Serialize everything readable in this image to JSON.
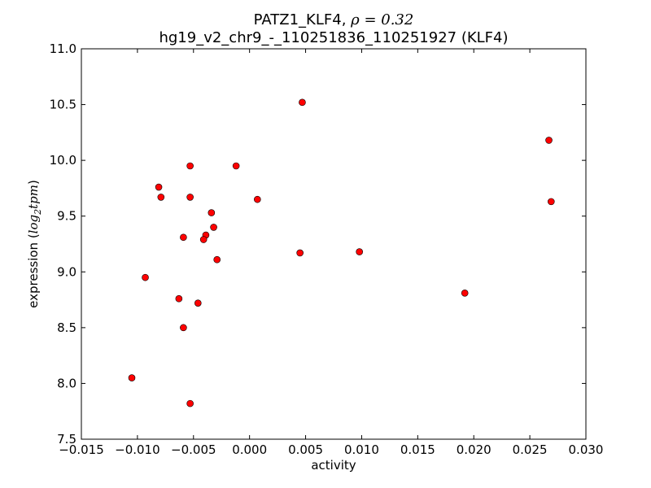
{
  "chart_data": {
    "type": "scatter",
    "title_line1_text": "PATZ1_KLF4, ",
    "title_line1_rho": "ρ = 0.32",
    "title_line2": "hg19_v2_chr9_-_110251836_110251927 (KLF4)",
    "xlabel": "activity",
    "ylabel_text": "expression (",
    "ylabel_math": "log",
    "ylabel_sub": "2",
    "ylabel_math2": "tpm",
    "ylabel_close": ")",
    "xlim": [
      -0.015,
      0.03
    ],
    "ylim": [
      7.5,
      11.0
    ],
    "x_ticks": [
      -0.015,
      -0.01,
      -0.005,
      0.0,
      0.005,
      0.01,
      0.015,
      0.02,
      0.025,
      0.03
    ],
    "x_tick_labels": [
      "−0.015",
      "−0.010",
      "−0.005",
      "0.000",
      "0.005",
      "0.010",
      "0.015",
      "0.020",
      "0.025",
      "0.030"
    ],
    "y_ticks": [
      7.5,
      8.0,
      8.5,
      9.0,
      9.5,
      10.0,
      10.5,
      11.0
    ],
    "y_tick_labels": [
      "7.5",
      "8.0",
      "8.5",
      "9.0",
      "9.5",
      "10.0",
      "10.5",
      "11.0"
    ],
    "marker_color": "#ff0000",
    "marker_edge": "#000000",
    "points": [
      {
        "x": 0.0047,
        "y": 10.52
      },
      {
        "x": 0.0267,
        "y": 10.18
      },
      {
        "x": -0.0053,
        "y": 9.95
      },
      {
        "x": -0.0012,
        "y": 9.95
      },
      {
        "x": -0.0081,
        "y": 9.76
      },
      {
        "x": -0.0079,
        "y": 9.67
      },
      {
        "x": -0.0053,
        "y": 9.67
      },
      {
        "x": 0.0007,
        "y": 9.65
      },
      {
        "x": 0.0269,
        "y": 9.63
      },
      {
        "x": -0.0034,
        "y": 9.53
      },
      {
        "x": -0.0032,
        "y": 9.4
      },
      {
        "x": -0.0039,
        "y": 9.33
      },
      {
        "x": -0.0059,
        "y": 9.31
      },
      {
        "x": -0.0041,
        "y": 9.29
      },
      {
        "x": 0.0098,
        "y": 9.18
      },
      {
        "x": 0.0045,
        "y": 9.17
      },
      {
        "x": -0.0029,
        "y": 9.11
      },
      {
        "x": -0.0093,
        "y": 8.95
      },
      {
        "x": 0.0192,
        "y": 8.81
      },
      {
        "x": -0.0063,
        "y": 8.76
      },
      {
        "x": -0.0046,
        "y": 8.72
      },
      {
        "x": -0.0059,
        "y": 8.5
      },
      {
        "x": -0.0105,
        "y": 8.05
      },
      {
        "x": -0.0053,
        "y": 7.82
      }
    ]
  }
}
